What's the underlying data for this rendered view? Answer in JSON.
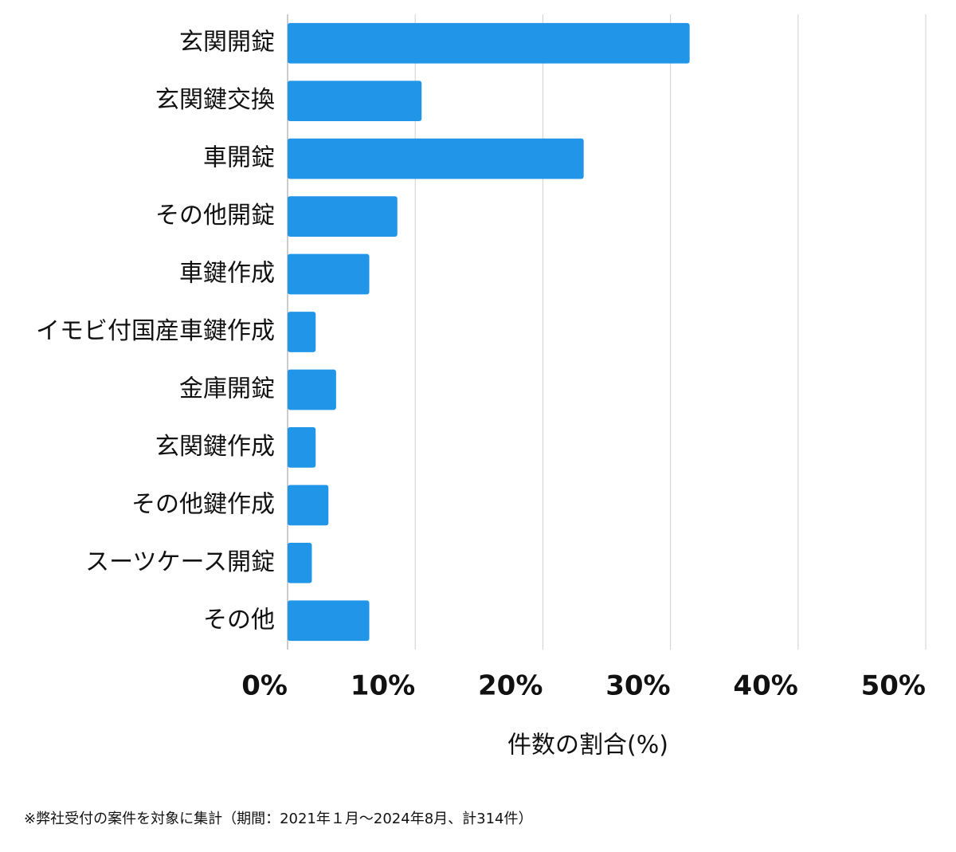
{
  "chart_data": {
    "type": "bar",
    "orientation": "horizontal",
    "categories": [
      "玄関開錠",
      "玄関鍵交換",
      "車開錠",
      "その他開錠",
      "車鍵作成",
      "イモビ付国産車鍵作成",
      "金庫開錠",
      "玄関鍵作成",
      "その他鍵作成",
      "スーツケース開錠",
      "その他"
    ],
    "values": [
      31.5,
      10.5,
      23.2,
      8.6,
      6.4,
      2.2,
      3.8,
      2.2,
      3.2,
      1.9,
      6.4
    ],
    "color": "#2196e8",
    "xlim": [
      0,
      50
    ],
    "xticks": [
      {
        "value": 0,
        "label": "0%"
      },
      {
        "value": 10,
        "label": "10%"
      },
      {
        "value": 20,
        "label": "20%"
      },
      {
        "value": 30,
        "label": "30%"
      },
      {
        "value": 40,
        "label": "40%"
      },
      {
        "value": 50,
        "label": "50%"
      }
    ],
    "x_label": "件数の割合(%)",
    "grid": true,
    "footnote": "※弊社受付の案件を対象に集計（期間：2021年１月～2024年8月、計314件）"
  }
}
